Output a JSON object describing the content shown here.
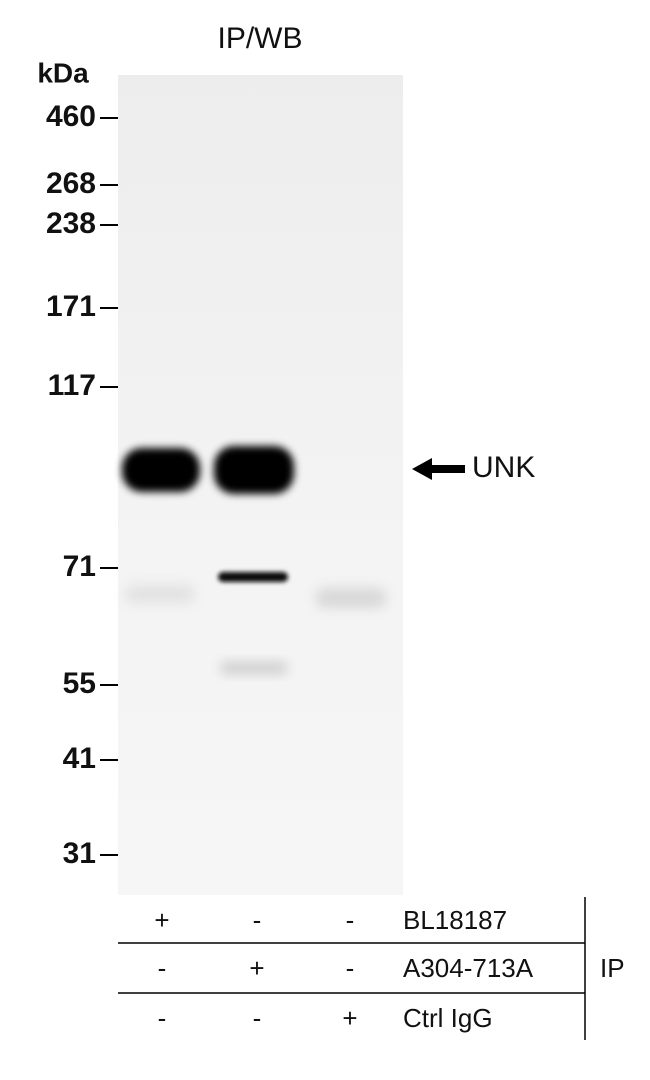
{
  "title": "IP/WB",
  "unit": "kDa",
  "markers": [
    "460",
    "268",
    "238",
    "171",
    "117",
    "71",
    "55",
    "41",
    "31"
  ],
  "band_label": "UNK",
  "table": {
    "rows": [
      {
        "label": "BL18187",
        "cells": [
          "+",
          "-",
          "-"
        ]
      },
      {
        "label": "A304-713A",
        "cells": [
          "-",
          "+",
          "-"
        ]
      },
      {
        "label": "Ctrl IgG",
        "cells": [
          "-",
          "-",
          "+"
        ]
      }
    ]
  },
  "group_label": "IP"
}
